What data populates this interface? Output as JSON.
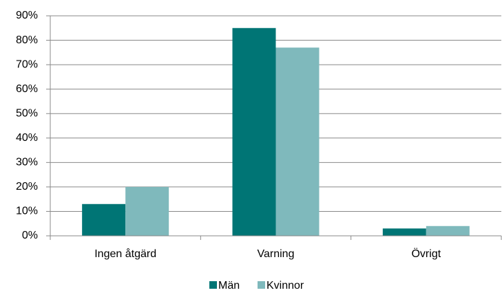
{
  "chart_data": {
    "type": "bar",
    "categories": [
      "Ingen åtgärd",
      "Varning",
      "Övrigt"
    ],
    "series": [
      {
        "name": "Män",
        "color": "#007575",
        "values": [
          13,
          85,
          3
        ]
      },
      {
        "name": "Kvinnor",
        "color": "#7fb9bc",
        "values": [
          20,
          77,
          4
        ]
      }
    ],
    "ylim": [
      0,
      90
    ],
    "yticks": [
      {
        "value": 0,
        "label": "0%"
      },
      {
        "value": 10,
        "label": "10%"
      },
      {
        "value": 20,
        "label": "20%"
      },
      {
        "value": 30,
        "label": "30%"
      },
      {
        "value": 40,
        "label": "40%"
      },
      {
        "value": 50,
        "label": "50%"
      },
      {
        "value": 60,
        "label": "60%"
      },
      {
        "value": 70,
        "label": "70%"
      },
      {
        "value": 80,
        "label": "80%"
      },
      {
        "value": 90,
        "label": "90%"
      }
    ],
    "grid": true,
    "legend": "bottom"
  }
}
